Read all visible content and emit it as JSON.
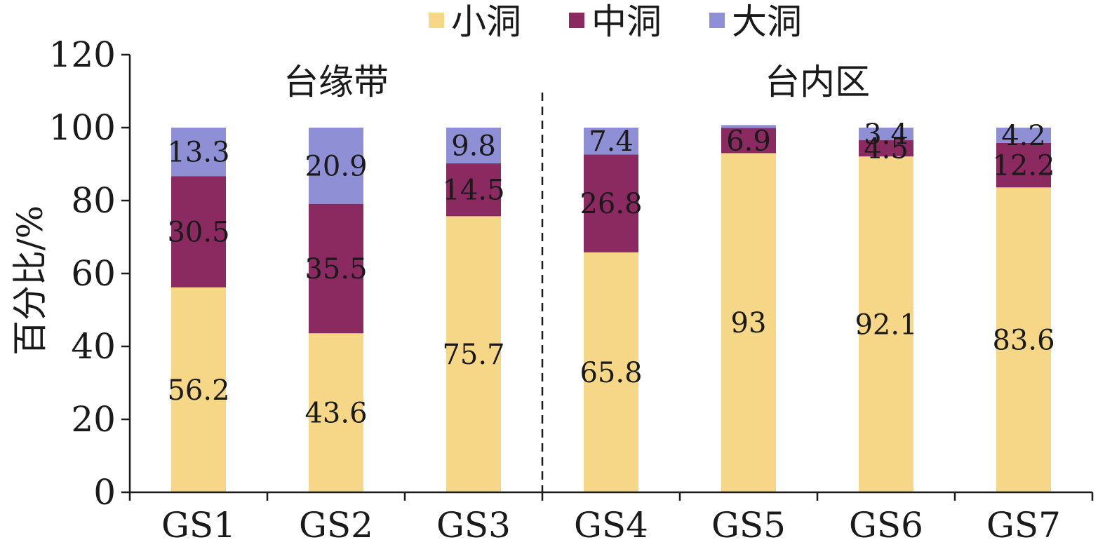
{
  "chart_data": {
    "type": "bar",
    "stacked": true,
    "categories": [
      "GS1",
      "GS2",
      "GS3",
      "GS4",
      "GS5",
      "GS6",
      "GS7"
    ],
    "series": [
      {
        "name": "小洞",
        "color": "#f5d787",
        "values": [
          56.2,
          43.6,
          75.7,
          65.8,
          93,
          92.1,
          83.6
        ]
      },
      {
        "name": "中洞",
        "color": "#8b2a60",
        "values": [
          30.5,
          35.5,
          14.5,
          26.8,
          6.9,
          4.5,
          12.2
        ]
      },
      {
        "name": "大洞",
        "color": "#8e8fd4",
        "values": [
          13.3,
          20.9,
          9.8,
          7.4,
          0.8,
          3.4,
          4.2
        ]
      }
    ],
    "data_labels": [
      [
        "56.2",
        "43.6",
        "75.7",
        "65.8",
        "93",
        "92.1",
        "83.6"
      ],
      [
        "30.5",
        "35.5",
        "14.5",
        "26.8",
        "6.9",
        "4.5",
        "12.2"
      ],
      [
        "13.3",
        "20.9",
        "9.8",
        "7.4",
        "",
        "3.4",
        "4.2"
      ]
    ],
    "ylabel": "百分比/%",
    "xlabel": "",
    "ylim": [
      0,
      120
    ],
    "yticks": [
      0,
      20,
      40,
      60,
      80,
      100,
      120
    ],
    "grid": false,
    "legend_position": "top-center",
    "regions": [
      {
        "label": "台缘带",
        "categories": [
          "GS1",
          "GS2",
          "GS3"
        ]
      },
      {
        "label": "台内区",
        "categories": [
          "GS4",
          "GS5",
          "GS6",
          "GS7"
        ]
      }
    ]
  }
}
